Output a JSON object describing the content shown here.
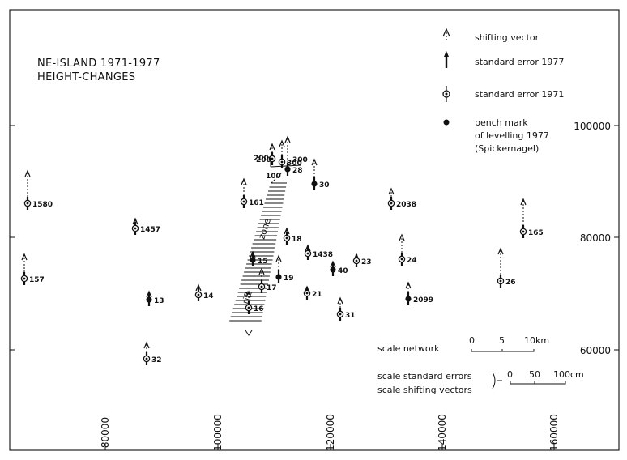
{
  "title": {
    "line1": "NE-ISLAND 1971-1977",
    "line2": "HEIGHT-CHANGES"
  },
  "legend": [
    {
      "symbol": "shifting-vector",
      "label": "shifting vector"
    },
    {
      "symbol": "standard-error-1977",
      "label": "standard error 1977"
    },
    {
      "symbol": "standard-error-1971",
      "label": "standard error 1971"
    },
    {
      "symbol": "bench-mark",
      "label": "bench mark\nof levelling 1977\n(Spickernagel)"
    }
  ],
  "axes": {
    "x_ticks": [
      "80000",
      "100000",
      "120000",
      "140000",
      "160000"
    ],
    "y_ticks": [
      "100000",
      "80000",
      "60000"
    ]
  },
  "zone_labels": {
    "rift": "rift",
    "zone": "zone"
  },
  "contour_labels": [
    "100",
    "200",
    "300"
  ],
  "scale_network": {
    "label": "scale network",
    "ticks": [
      "0",
      "5",
      "10km"
    ]
  },
  "scale_errors": {
    "label1": "scale standard errors",
    "label2": "scale shifting vectors",
    "ticks": [
      "0",
      "50",
      "100cm"
    ]
  },
  "points": [
    {
      "id": "1580",
      "type": "open"
    },
    {
      "id": "157",
      "type": "open"
    },
    {
      "id": "1457",
      "type": "open"
    },
    {
      "id": "13",
      "type": "filled"
    },
    {
      "id": "14",
      "type": "open"
    },
    {
      "id": "32",
      "type": "open"
    },
    {
      "id": "161",
      "type": "open"
    },
    {
      "id": "15",
      "type": "filled"
    },
    {
      "id": "16",
      "type": "open"
    },
    {
      "id": "17",
      "type": "open"
    },
    {
      "id": "19",
      "type": "filled"
    },
    {
      "id": "18",
      "type": "open"
    },
    {
      "id": "200",
      "type": "open"
    },
    {
      "id": "300",
      "type": "open"
    },
    {
      "id": "28",
      "type": "filled"
    },
    {
      "id": "30",
      "type": "filled"
    },
    {
      "id": "1438",
      "type": "open"
    },
    {
      "id": "21",
      "type": "open"
    },
    {
      "id": "40",
      "type": "filled"
    },
    {
      "id": "23",
      "type": "open"
    },
    {
      "id": "31",
      "type": "open"
    },
    {
      "id": "2038",
      "type": "open"
    },
    {
      "id": "24",
      "type": "open"
    },
    {
      "id": "2099",
      "type": "filled"
    },
    {
      "id": "26",
      "type": "open"
    },
    {
      "id": "165",
      "type": "open"
    }
  ]
}
